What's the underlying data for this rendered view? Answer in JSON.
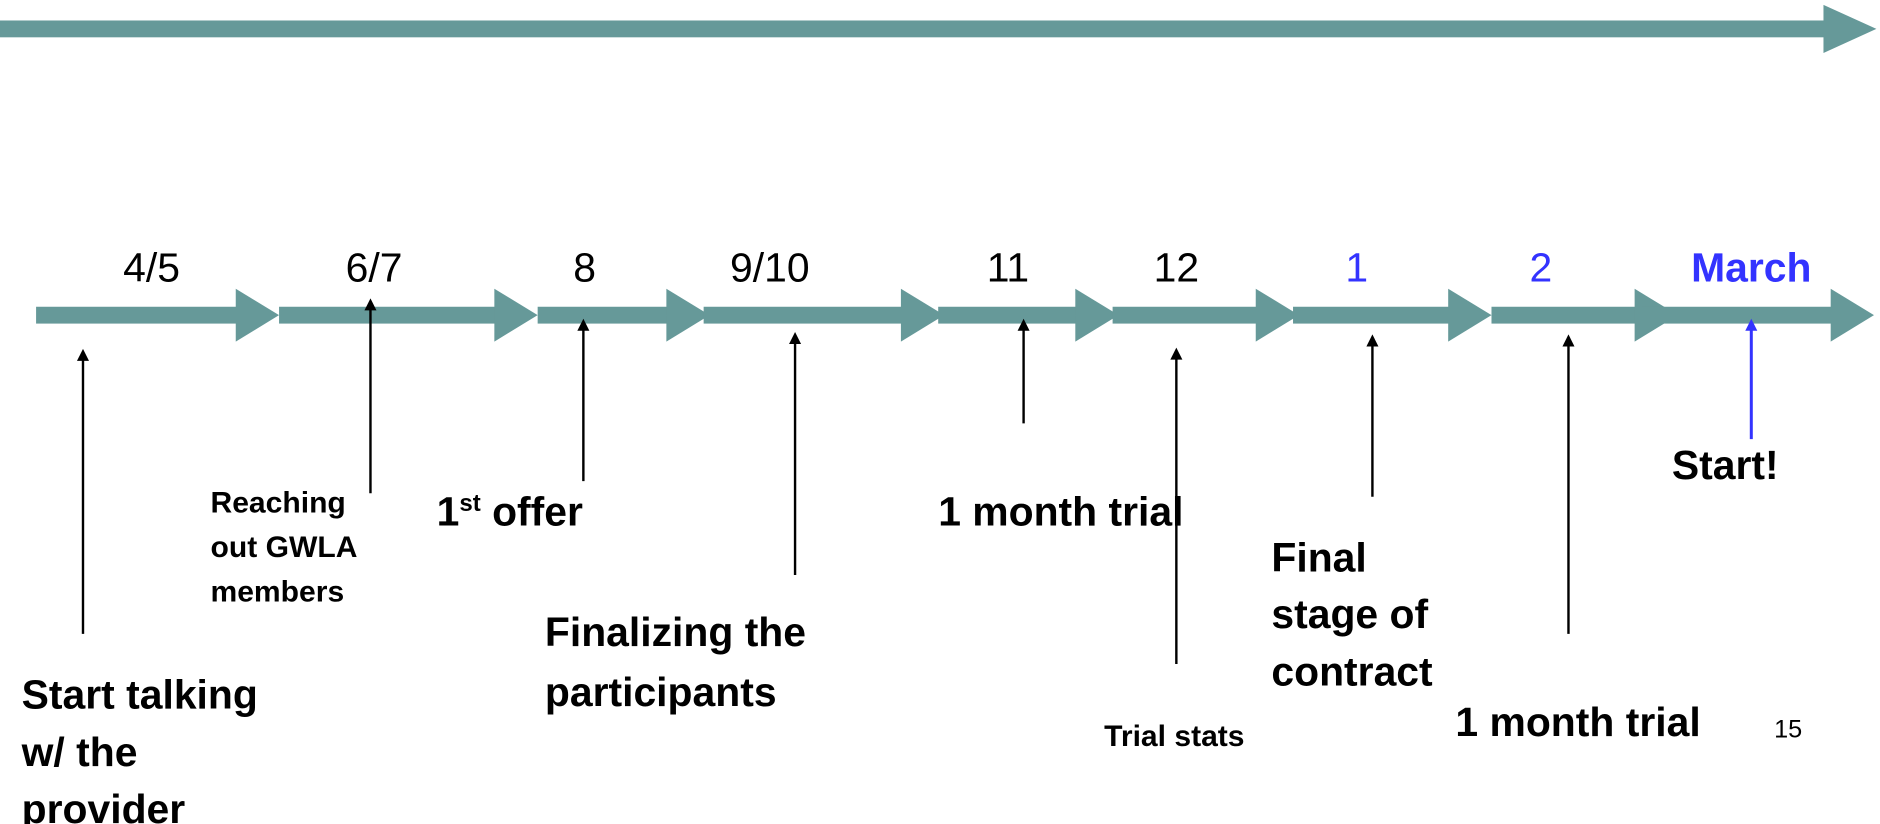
{
  "months": [
    "4/5",
    "6/7",
    "8",
    "9/10",
    "11",
    "12",
    "1",
    "2",
    "March"
  ],
  "events": {
    "start_talking": [
      "Start talking",
      "w/ the",
      "provider"
    ],
    "reaching_out": [
      "Reaching",
      "out GWLA",
      "members"
    ],
    "first_offer": {
      "number": "1",
      "sup": "st",
      "rest": " offer"
    },
    "finalizing": [
      "Finalizing the",
      "participants"
    ],
    "trial_1": "1 month trial",
    "trial_stats": "Trial stats",
    "final_stage": [
      "Final",
      "stage of",
      "contract"
    ],
    "trial_2": "1 month trial",
    "start": "Start!"
  },
  "page_number": "15"
}
